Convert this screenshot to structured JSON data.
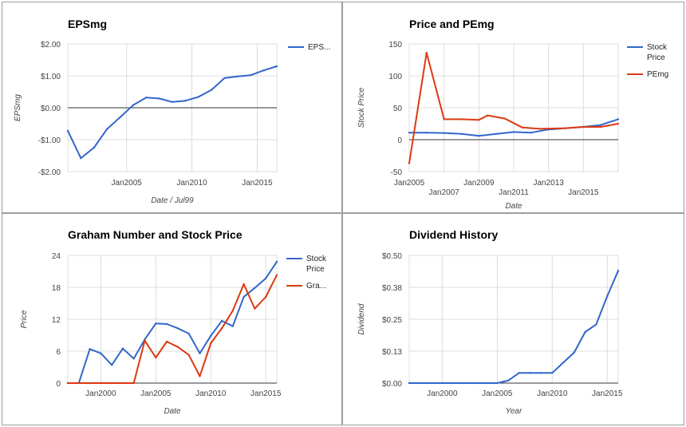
{
  "colors": {
    "blue": "#3366cc",
    "red": "#dc3912",
    "grid": "#dcdcdc"
  },
  "chart_data": [
    {
      "type": "line",
      "title": "EPSmg",
      "xlabel": "Date / Jul99",
      "ylabel": "EPSmg",
      "x_ticks": [
        "Jan2005",
        "Jan2010",
        "Jan2015"
      ],
      "y_ticks": [
        "$2.00",
        "$1.00",
        "$0.00",
        "-$1.00",
        "-$2.00"
      ],
      "y_tick_values": [
        2,
        1,
        0,
        -1,
        -2
      ],
      "xlim": [
        2000.5,
        2016.5
      ],
      "ylim": [
        -2,
        2
      ],
      "zero_line": true,
      "legend": "right",
      "series": [
        {
          "name": "EPS...",
          "color": "#3366cc",
          "x": [
            2000.5,
            2001.5,
            2002.5,
            2003.5,
            2004.5,
            2005.5,
            2006.5,
            2007.5,
            2008.5,
            2009.5,
            2010.5,
            2011.5,
            2012.5,
            2013.5,
            2014.5,
            2015.5,
            2016.5
          ],
          "y": [
            -0.72,
            -1.58,
            -1.25,
            -0.67,
            -0.3,
            0.08,
            0.32,
            0.29,
            0.18,
            0.22,
            0.34,
            0.56,
            0.93,
            0.98,
            1.02,
            1.17,
            1.3
          ]
        }
      ]
    },
    {
      "type": "line",
      "title": "Price and PEmg",
      "xlabel": "Date",
      "ylabel": "Stock Price",
      "x_ticks_upper": [
        "Jan2005",
        "Jan2009",
        "Jan2013"
      ],
      "x_ticks_lower": [
        "Jan2007",
        "Jan2011",
        "Jan2015"
      ],
      "y_ticks": [
        "150",
        "100",
        "50",
        "0",
        "-50"
      ],
      "y_tick_values": [
        150,
        100,
        50,
        0,
        -50
      ],
      "xlim": [
        2005,
        2017
      ],
      "ylim": [
        -50,
        150
      ],
      "zero_line": true,
      "legend": "right",
      "series": [
        {
          "name": "Stock Price",
          "color": "#3366cc",
          "x": [
            2005,
            2006,
            2007,
            2008,
            2009,
            2010,
            2011,
            2012,
            2013,
            2014,
            2015,
            2016,
            2017
          ],
          "y": [
            11,
            11,
            10.5,
            9,
            6,
            9,
            12,
            11,
            16,
            18,
            20,
            23,
            32
          ]
        },
        {
          "name": "PEmg",
          "color": "#dc3912",
          "x": [
            2005,
            2006,
            2007,
            2008,
            2009,
            2009.5,
            2010.5,
            2011.5,
            2012.5,
            2014,
            2015,
            2016,
            2017
          ],
          "y": [
            -37,
            136,
            32,
            32,
            31,
            38,
            33,
            19,
            17,
            18,
            20,
            20,
            25
          ]
        }
      ]
    },
    {
      "type": "line",
      "title": "Graham Number and Stock Price",
      "xlabel": "Date",
      "ylabel": "Price",
      "x_ticks": [
        "Jan2000",
        "Jan2005",
        "Jan2010",
        "Jan2015"
      ],
      "y_ticks": [
        "24",
        "18",
        "12",
        "6",
        "0"
      ],
      "y_tick_values": [
        24,
        18,
        12,
        6,
        0
      ],
      "xlim": [
        1997,
        2016
      ],
      "ylim": [
        0,
        24
      ],
      "zero_line": true,
      "legend": "right",
      "series": [
        {
          "name": "Stock Price",
          "color": "#3366cc",
          "x": [
            1997,
            1998,
            1999,
            2000,
            2001,
            2002,
            2003,
            2004,
            2005,
            2006,
            2007,
            2008,
            2009,
            2010,
            2011,
            2012,
            2013,
            2014,
            2015,
            2016
          ],
          "y": [
            0,
            0,
            6.4,
            5.6,
            3.4,
            6.5,
            4.6,
            8.2,
            11.2,
            11.1,
            10.3,
            9.3,
            5.6,
            8.9,
            11.7,
            10.7,
            16.2,
            17.9,
            19.7,
            22.8
          ]
        },
        {
          "name": "Gra...",
          "color": "#dc3912",
          "x": [
            1997,
            1998,
            1999,
            2000,
            2001,
            2002,
            2003,
            2004,
            2005,
            2006,
            2007,
            2008,
            2009,
            2010,
            2011,
            2012,
            2013,
            2014,
            2015,
            2016
          ],
          "y": [
            0,
            0,
            0,
            0,
            0,
            0,
            0,
            8,
            4.8,
            7.8,
            6.8,
            5.3,
            1.3,
            7.5,
            10.3,
            13.6,
            18.6,
            14,
            16.2,
            20.3
          ]
        }
      ]
    },
    {
      "type": "line",
      "title": "Dividend History",
      "xlabel": "Year",
      "ylabel": "Dividend",
      "x_ticks": [
        "Jan2000",
        "Jan2005",
        "Jan2010",
        "Jan2015"
      ],
      "y_ticks": [
        "$0.50",
        "$0.38",
        "$0.25",
        "$0.13",
        "$0.00"
      ],
      "y_tick_values": [
        0.5,
        0.375,
        0.25,
        0.125,
        0
      ],
      "xlim": [
        1997,
        2016
      ],
      "ylim": [
        0,
        0.5
      ],
      "zero_line": true,
      "legend": "none",
      "series": [
        {
          "color": "#3366cc",
          "x": [
            1997,
            1998,
            1999,
            2000,
            2001,
            2002,
            2003,
            2004,
            2005,
            2006,
            2007,
            2008,
            2009,
            2010,
            2011,
            2012,
            2013,
            2014,
            2015,
            2016
          ],
          "y": [
            0,
            0,
            0,
            0,
            0,
            0,
            0,
            0,
            0,
            0.01,
            0.04,
            0.04,
            0.04,
            0.04,
            0.08,
            0.12,
            0.2,
            0.23,
            0.34,
            0.44
          ]
        }
      ]
    }
  ]
}
